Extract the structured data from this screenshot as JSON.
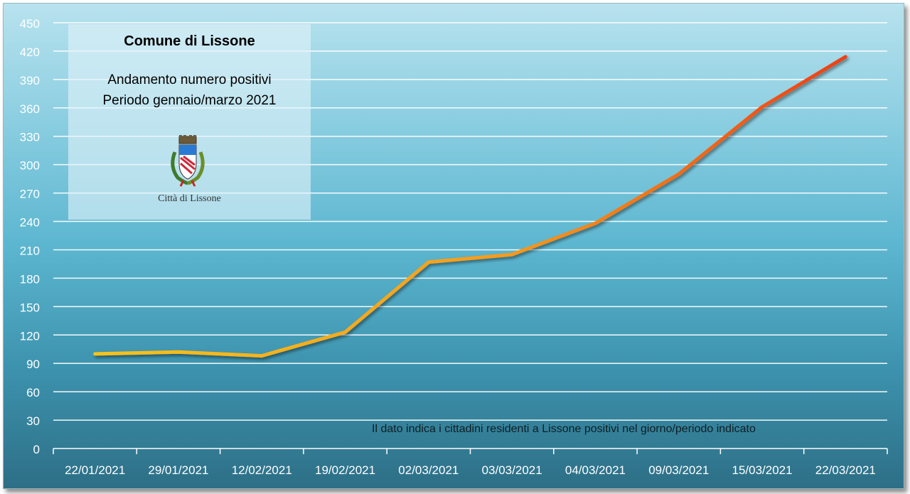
{
  "info_box": {
    "title": "Comune di Lissone",
    "subtitle_line1": "Andamento numero positivi",
    "subtitle_line2": "Periodo gennaio/marzo 2021",
    "emblem_caption": "Città di Lissone",
    "emblem_icon": "coat-of-arms-icon"
  },
  "note": "Il dato indica i cittadini residenti a Lissone positivi nel giorno/periodo indicato",
  "chart_data": {
    "type": "line",
    "title": "Comune di Lissone",
    "subtitle": "Andamento numero positivi Periodo gennaio/marzo 2021",
    "xlabel": "",
    "ylabel": "",
    "categories": [
      "22/01/2021",
      "29/01/2021",
      "12/02/2021",
      "19/02/2021",
      "02/03/2021",
      "03/03/2021",
      "04/03/2021",
      "09/03/2021",
      "15/03/2021",
      "22/03/2021"
    ],
    "series": [
      {
        "values": [
          100,
          102,
          98,
          123,
          197,
          205,
          238,
          290,
          361,
          414
        ]
      }
    ],
    "ylim": [
      0,
      450
    ],
    "yticks": [
      0,
      30,
      60,
      90,
      120,
      150,
      180,
      210,
      240,
      270,
      300,
      330,
      360,
      390,
      420,
      450
    ],
    "grid": true,
    "legend": "none",
    "line_gradient": [
      "#f6c31c",
      "#f79a1a",
      "#ee3f17"
    ]
  }
}
